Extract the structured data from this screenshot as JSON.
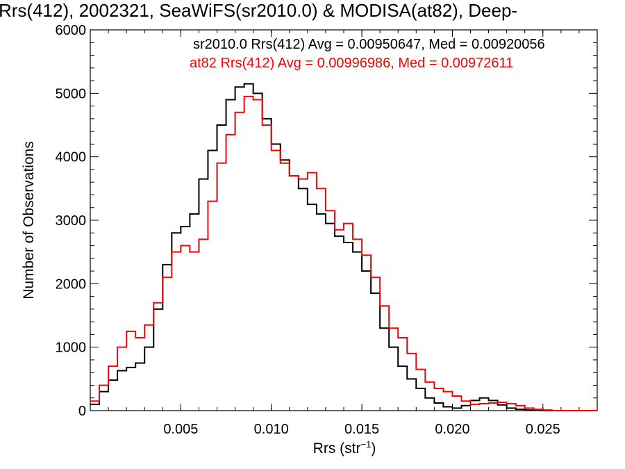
{
  "chart_data": {
    "type": "line",
    "title": "Rrs(412), 2002321, SeaWiFS(sr2010.0) & MODISA(at82), Deep-",
    "xlabel_main": "Rrs (str",
    "xlabel_sup": "−1",
    "xlabel_close": ")",
    "ylabel": "Number of Observations",
    "xlim": [
      0.0,
      0.028
    ],
    "ylim": [
      0,
      6000
    ],
    "x_ticks": [
      {
        "value": 0.005,
        "label": "0.005"
      },
      {
        "value": 0.01,
        "label": "0.010"
      },
      {
        "value": 0.015,
        "label": "0.015"
      },
      {
        "value": 0.02,
        "label": "0.020"
      },
      {
        "value": 0.025,
        "label": "0.025"
      }
    ],
    "y_ticks": [
      {
        "value": 0,
        "label": "0"
      },
      {
        "value": 1000,
        "label": "1000"
      },
      {
        "value": 2000,
        "label": "2000"
      },
      {
        "value": 3000,
        "label": "3000"
      },
      {
        "value": 4000,
        "label": "4000"
      },
      {
        "value": 5000,
        "label": "5000"
      },
      {
        "value": 6000,
        "label": "6000"
      }
    ],
    "legend": [
      {
        "text": "sr2010.0 Rrs(412) Avg = 0.00950647, Med = 0.00920056",
        "color": "#000000"
      },
      {
        "text": "at82 Rrs(412) Avg = 0.00996986, Med = 0.00972611",
        "color": "#ff0000"
      }
    ],
    "series": [
      {
        "color": "#000000",
        "x": [
          0.0,
          0.0005,
          0.001,
          0.0015,
          0.002,
          0.0025,
          0.003,
          0.0035,
          0.004,
          0.0045,
          0.005,
          0.0055,
          0.006,
          0.0065,
          0.007,
          0.0075,
          0.008,
          0.0085,
          0.009,
          0.0095,
          0.01,
          0.0105,
          0.011,
          0.0115,
          0.012,
          0.0125,
          0.013,
          0.0135,
          0.014,
          0.0145,
          0.015,
          0.0155,
          0.016,
          0.0165,
          0.017,
          0.0175,
          0.018,
          0.0185,
          0.019,
          0.0195,
          0.02,
          0.0205,
          0.021,
          0.0215,
          0.022,
          0.0225,
          0.023,
          0.0235,
          0.024,
          0.0245,
          0.025,
          0.0255,
          0.026,
          0.0265,
          0.027,
          0.0275,
          0.028
        ],
        "y": [
          100,
          300,
          480,
          630,
          680,
          750,
          1000,
          1600,
          2300,
          2800,
          2900,
          3100,
          3650,
          4100,
          4500,
          4900,
          5100,
          5150,
          5000,
          4600,
          4200,
          3950,
          3700,
          3500,
          3250,
          3100,
          2950,
          2750,
          2650,
          2500,
          2200,
          1850,
          1300,
          1000,
          700,
          500,
          350,
          200,
          120,
          60,
          40,
          80,
          160,
          200,
          160,
          90,
          40,
          20,
          10,
          5,
          0,
          0,
          0,
          0,
          0,
          0,
          0
        ]
      },
      {
        "color": "#ff0000",
        "x": [
          0.0,
          0.0005,
          0.001,
          0.0015,
          0.002,
          0.0025,
          0.003,
          0.0035,
          0.004,
          0.0045,
          0.005,
          0.0055,
          0.006,
          0.0065,
          0.007,
          0.0075,
          0.008,
          0.0085,
          0.009,
          0.0095,
          0.01,
          0.0105,
          0.011,
          0.0115,
          0.012,
          0.0125,
          0.013,
          0.0135,
          0.014,
          0.0145,
          0.015,
          0.0155,
          0.016,
          0.0165,
          0.017,
          0.0175,
          0.018,
          0.0185,
          0.019,
          0.0195,
          0.02,
          0.0205,
          0.021,
          0.0215,
          0.022,
          0.0225,
          0.023,
          0.0235,
          0.024,
          0.0245,
          0.025,
          0.0255,
          0.026,
          0.0265,
          0.027,
          0.0275,
          0.028
        ],
        "y": [
          150,
          400,
          700,
          1000,
          1250,
          1150,
          1350,
          1700,
          2100,
          2500,
          2600,
          2500,
          2700,
          3300,
          3900,
          4350,
          4700,
          4950,
          4900,
          4500,
          4100,
          3900,
          3700,
          3650,
          3750,
          3500,
          3150,
          2850,
          2950,
          2700,
          2450,
          2100,
          1650,
          1300,
          1150,
          900,
          650,
          450,
          350,
          300,
          230,
          150,
          100,
          110,
          120,
          130,
          110,
          80,
          40,
          20,
          10,
          0,
          0,
          0,
          0,
          0,
          0
        ]
      }
    ]
  }
}
